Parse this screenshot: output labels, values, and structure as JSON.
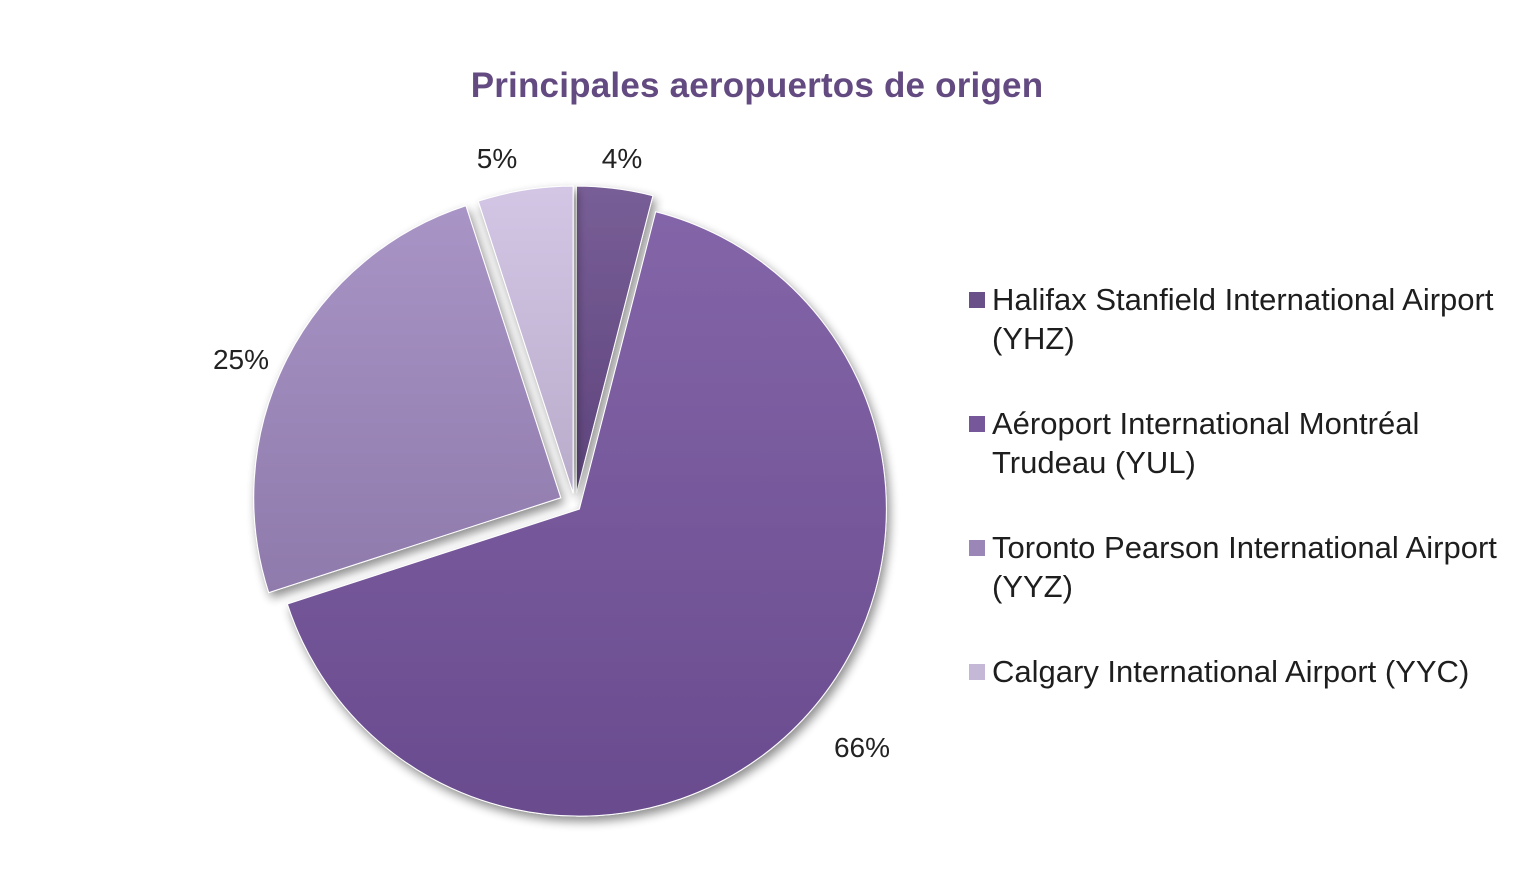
{
  "chart_data": {
    "type": "pie",
    "title": "Principales aeropuertos de origen",
    "categories": [
      "Halifax Stanfield International Airport (YHZ)",
      "Aéroport International Montréal Trudeau (YUL)",
      "Toronto Pearson International Airport (YYZ)",
      "Calgary International Airport (YYC)"
    ],
    "values": [
      4,
      66,
      25,
      5
    ],
    "data_labels": [
      "4%",
      "66%",
      "25%",
      "5%"
    ],
    "colors": [
      "#6a5088",
      "#75579a",
      "#9b86b8",
      "#c5b8d7"
    ],
    "legend_position": "right",
    "exploded": true
  }
}
